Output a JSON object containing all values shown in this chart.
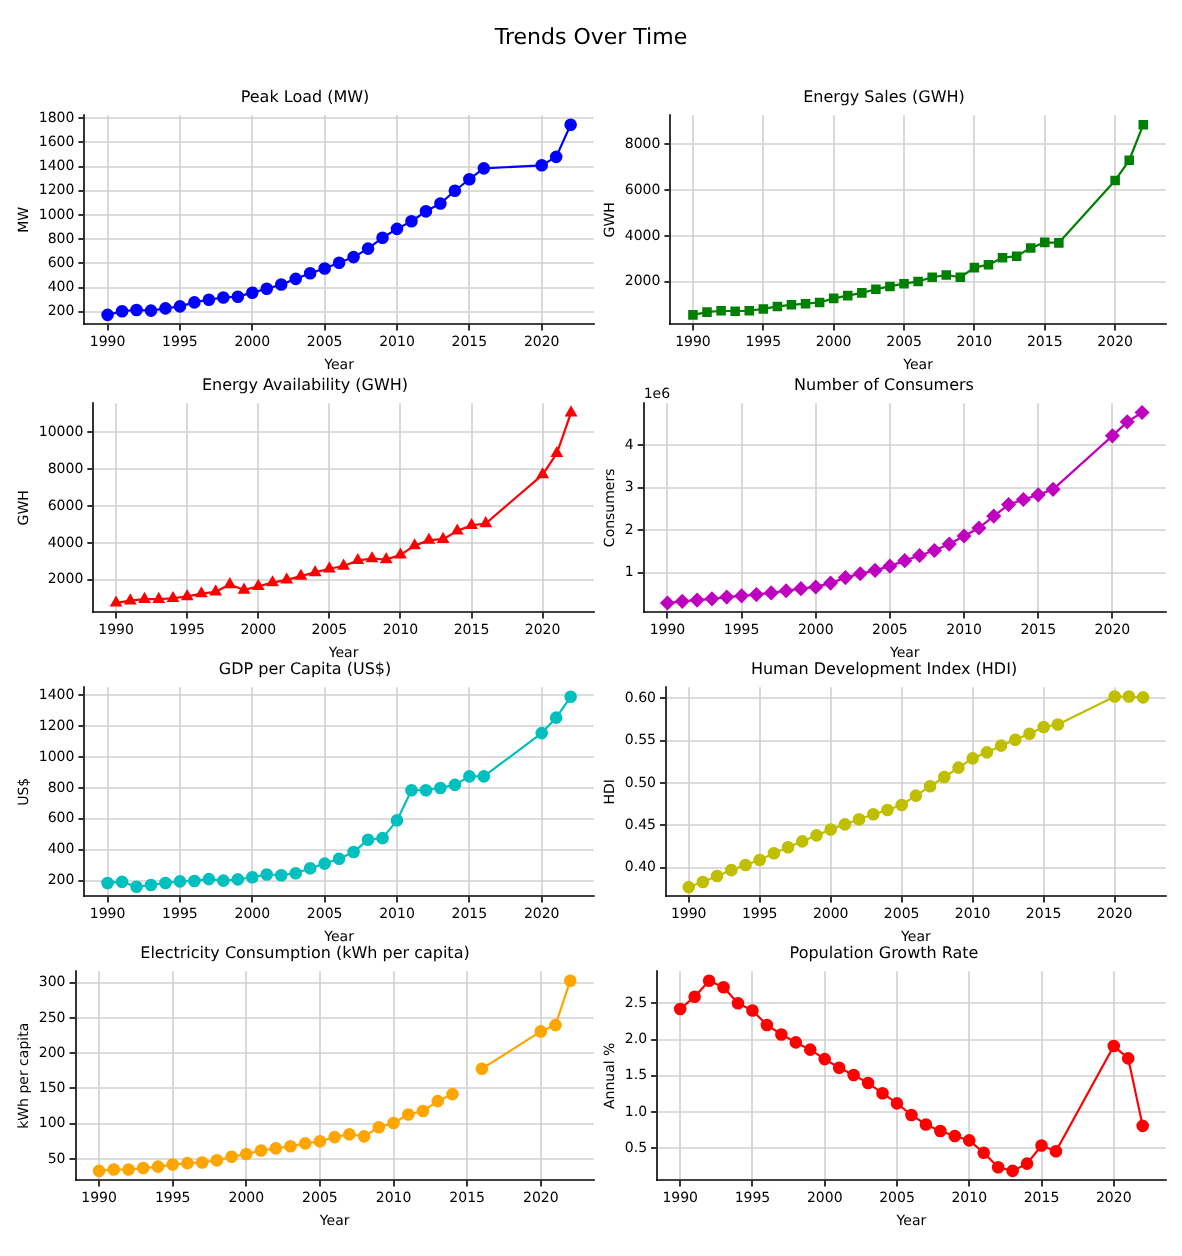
{
  "chart_data": [
    {
      "type": "line",
      "title": "Peak Load (MW)",
      "xlabel": "Year",
      "ylabel": "MW",
      "annotations": [
        "Trends Over Time"
      ],
      "marker": "circle",
      "grid": true,
      "x": [
        1990,
        1991,
        1992,
        1993,
        1994,
        1995,
        1996,
        1997,
        1998,
        1999,
        2000,
        2001,
        2002,
        2003,
        2004,
        2005,
        2006,
        2007,
        2008,
        2009,
        2010,
        2011,
        2012,
        2013,
        2014,
        2015,
        2016,
        2020,
        2021,
        2022
      ],
      "series": [
        {
          "color": "#0000ff",
          "values": [
            175,
            205,
            215,
            210,
            228,
            245,
            278,
            300,
            318,
            325,
            358,
            390,
            425,
            472,
            518,
            558,
            605,
            652,
            722,
            812,
            885,
            948,
            1030,
            1095,
            1200,
            1295,
            1385,
            1410,
            1480,
            1745
          ]
        }
      ],
      "xlim": [
        1988.4,
        2023.6
      ],
      "xticks": [
        1990,
        1995,
        2000,
        2005,
        2010,
        2015,
        2020
      ],
      "ylim": [
        96,
        1824
      ],
      "yticks": [
        200,
        400,
        600,
        800,
        1000,
        1200,
        1400,
        1600,
        1800
      ]
    },
    {
      "type": "line",
      "title": "Energy Sales (GWH)",
      "xlabel": "Year",
      "ylabel": "GWH",
      "marker": "square",
      "grid": true,
      "x": [
        1990,
        1991,
        1992,
        1993,
        1994,
        1995,
        1996,
        1997,
        1998,
        1999,
        2000,
        2001,
        2002,
        2003,
        2004,
        2005,
        2006,
        2007,
        2008,
        2009,
        2010,
        2011,
        2012,
        2013,
        2014,
        2015,
        2016,
        2020,
        2021,
        2022
      ],
      "series": [
        {
          "color": "#008000",
          "values": [
            560,
            680,
            740,
            720,
            740,
            820,
            930,
            1000,
            1050,
            1100,
            1280,
            1400,
            1520,
            1680,
            1800,
            1920,
            2020,
            2200,
            2300,
            2200,
            2620,
            2750,
            3050,
            3120,
            3480,
            3720,
            3700,
            6420,
            7300,
            8850
          ]
        }
      ],
      "xlim": [
        1988.4,
        2023.6
      ],
      "xticks": [
        1990,
        1995,
        2000,
        2005,
        2010,
        2015,
        2020
      ],
      "ylim": [
        146,
        9264
      ],
      "yticks": [
        2000,
        4000,
        6000,
        8000
      ]
    },
    {
      "type": "line",
      "title": "Energy Availability (GWH)",
      "xlabel": "Year",
      "ylabel": "GWH",
      "marker": "triangle",
      "grid": true,
      "x": [
        1990,
        1991,
        1992,
        1993,
        1994,
        1995,
        1996,
        1997,
        1998,
        1999,
        2000,
        2001,
        2002,
        2003,
        2004,
        2005,
        2006,
        2007,
        2008,
        2009,
        2010,
        2011,
        2012,
        2013,
        2014,
        2015,
        2016,
        2020,
        2021,
        2022
      ],
      "series": [
        {
          "color": "#ff0000",
          "values": [
            750,
            870,
            950,
            950,
            1000,
            1100,
            1250,
            1350,
            1750,
            1450,
            1650,
            1850,
            2000,
            2200,
            2400,
            2600,
            2750,
            3050,
            3150,
            3100,
            3350,
            3850,
            4150,
            4200,
            4650,
            4950,
            5050,
            7700,
            8850,
            11050
          ]
        }
      ],
      "xlim": [
        1988.4,
        2023.6
      ],
      "xticks": [
        1990,
        1995,
        2000,
        2005,
        2010,
        2015,
        2020
      ],
      "ylim": [
        235,
        11565
      ],
      "yticks": [
        2000,
        4000,
        6000,
        8000,
        10000
      ]
    },
    {
      "type": "line",
      "title": "Number of Consumers",
      "xlabel": "Year",
      "ylabel": "Consumers",
      "annotations": [
        "1e6"
      ],
      "marker": "diamond",
      "grid": true,
      "x": [
        1990,
        1991,
        1992,
        1993,
        1994,
        1995,
        1996,
        1997,
        1998,
        1999,
        2000,
        2001,
        2002,
        2003,
        2004,
        2005,
        2006,
        2007,
        2008,
        2009,
        2010,
        2011,
        2012,
        2013,
        2014,
        2015,
        2016,
        2020,
        2021,
        2022
      ],
      "series": [
        {
          "color": "#bf00bf",
          "values": [
            0.28,
            0.32,
            0.35,
            0.38,
            0.42,
            0.45,
            0.48,
            0.52,
            0.57,
            0.62,
            0.66,
            0.75,
            0.88,
            0.97,
            1.05,
            1.15,
            1.28,
            1.4,
            1.52,
            1.67,
            1.86,
            2.05,
            2.33,
            2.6,
            2.72,
            2.83,
            2.96,
            4.22,
            4.55,
            4.77
          ]
        }
      ],
      "xlim": [
        1988.4,
        2023.6
      ],
      "xticks": [
        1990,
        1995,
        2000,
        2005,
        2010,
        2015,
        2020
      ],
      "ylim": [
        0.06,
        4.99
      ],
      "yticks": [
        1,
        2,
        3,
        4
      ]
    },
    {
      "type": "line",
      "title": "GDP per Capita (US$)",
      "xlabel": "Year",
      "ylabel": "US$",
      "marker": "circle",
      "grid": true,
      "x": [
        1990,
        1991,
        1992,
        1993,
        1994,
        1995,
        1996,
        1997,
        1998,
        1999,
        2000,
        2001,
        2002,
        2003,
        2004,
        2005,
        2006,
        2007,
        2008,
        2009,
        2010,
        2011,
        2012,
        2013,
        2014,
        2015,
        2016,
        2020,
        2021,
        2022
      ],
      "series": [
        {
          "color": "#00bfbf",
          "values": [
            185,
            192,
            160,
            172,
            185,
            195,
            198,
            210,
            200,
            208,
            222,
            240,
            235,
            248,
            280,
            310,
            342,
            385,
            465,
            475,
            590,
            785,
            785,
            800,
            820,
            875,
            875,
            1155,
            1255,
            1390
          ]
        }
      ],
      "xlim": [
        1988.4,
        2023.6
      ],
      "xticks": [
        1990,
        1995,
        2000,
        2005,
        2010,
        2015,
        2020
      ],
      "ylim": [
        98,
        1452
      ],
      "yticks": [
        200,
        400,
        600,
        800,
        1000,
        1200,
        1400
      ]
    },
    {
      "type": "line",
      "title": "Human Development Index (HDI)",
      "xlabel": "Year",
      "ylabel": "HDI",
      "marker": "circle",
      "grid": true,
      "x": [
        1990,
        1991,
        1992,
        1993,
        1994,
        1995,
        1996,
        1997,
        1998,
        1999,
        2000,
        2001,
        2002,
        2003,
        2004,
        2005,
        2006,
        2007,
        2008,
        2009,
        2010,
        2011,
        2012,
        2013,
        2014,
        2015,
        2016,
        2020,
        2021,
        2022
      ],
      "series": [
        {
          "color": "#bfbf00",
          "values": [
            0.377,
            0.383,
            0.39,
            0.397,
            0.403,
            0.409,
            0.417,
            0.424,
            0.431,
            0.438,
            0.445,
            0.451,
            0.457,
            0.463,
            0.468,
            0.474,
            0.485,
            0.496,
            0.507,
            0.518,
            0.529,
            0.536,
            0.544,
            0.551,
            0.558,
            0.566,
            0.569,
            0.602,
            0.602,
            0.601
          ]
        }
      ],
      "xlim": [
        1988.4,
        2023.6
      ],
      "xticks": [
        1990,
        1995,
        2000,
        2005,
        2010,
        2015,
        2020
      ],
      "ylim": [
        0.366,
        0.613
      ],
      "yticks": [
        {
          "value": 0.4,
          "label": "0.40"
        },
        {
          "value": 0.45,
          "label": "0.45"
        },
        {
          "value": 0.5,
          "label": "0.50"
        },
        {
          "value": 0.55,
          "label": "0.55"
        },
        {
          "value": 0.6,
          "label": "0.60"
        }
      ]
    },
    {
      "type": "line",
      "title": "Electricity Consumption (kWh per capita)",
      "xlabel": "Year",
      "ylabel": "kWh per capita",
      "marker": "circle",
      "grid": true,
      "x": [
        1990,
        1991,
        1992,
        1993,
        1994,
        1995,
        1996,
        1997,
        1998,
        1999,
        2000,
        2001,
        2002,
        2003,
        2004,
        2005,
        2006,
        2007,
        2008,
        2009,
        2010,
        2011,
        2012,
        2013,
        2014,
        2015,
        2016,
        2020,
        2021,
        2022
      ],
      "series": [
        {
          "color": "#ffa500",
          "values": [
            33,
            35,
            35,
            37,
            39,
            42,
            44,
            45,
            48,
            53,
            57,
            62,
            65,
            68,
            72,
            75,
            81,
            85,
            82,
            95,
            101,
            113,
            118,
            132,
            142,
            null,
            178,
            231,
            240,
            303
          ]
        }
      ],
      "xlim": [
        1988.4,
        2023.6
      ],
      "xticks": [
        1990,
        1995,
        2000,
        2005,
        2010,
        2015,
        2020
      ],
      "ylim": [
        19.5,
        316.5
      ],
      "yticks": [
        50,
        100,
        150,
        200,
        250,
        300
      ]
    },
    {
      "type": "line",
      "title": "Population Growth Rate",
      "xlabel": "Year",
      "ylabel": "Annual %",
      "marker": "circle",
      "grid": true,
      "x": [
        1990,
        1991,
        1992,
        1993,
        1994,
        1995,
        1996,
        1997,
        1998,
        1999,
        2000,
        2001,
        2002,
        2003,
        2004,
        2005,
        2006,
        2007,
        2008,
        2009,
        2010,
        2011,
        2012,
        2013,
        2014,
        2015,
        2016,
        2020,
        2021,
        2022
      ],
      "series": [
        {
          "color": "#ff0000",
          "values": [
            2.42,
            2.59,
            2.81,
            2.72,
            2.5,
            2.4,
            2.2,
            2.07,
            1.96,
            1.86,
            1.73,
            1.61,
            1.51,
            1.4,
            1.26,
            1.12,
            0.96,
            0.83,
            0.74,
            0.67,
            0.61,
            0.44,
            0.24,
            0.19,
            0.29,
            0.54,
            0.46,
            1.91,
            1.74,
            0.81
          ]
        }
      ],
      "xlim": [
        1988.4,
        2023.6
      ],
      "xticks": [
        1990,
        1995,
        2000,
        2005,
        2010,
        2015,
        2020
      ],
      "ylim": [
        0.059,
        2.941
      ],
      "yticks": [
        {
          "value": 0.5,
          "label": "0.5"
        },
        {
          "value": 1,
          "label": "1.0"
        },
        {
          "value": 1.5,
          "label": "1.5"
        },
        {
          "value": 2,
          "label": "2.0"
        },
        {
          "value": 2.5,
          "label": "2.5"
        }
      ]
    }
  ]
}
